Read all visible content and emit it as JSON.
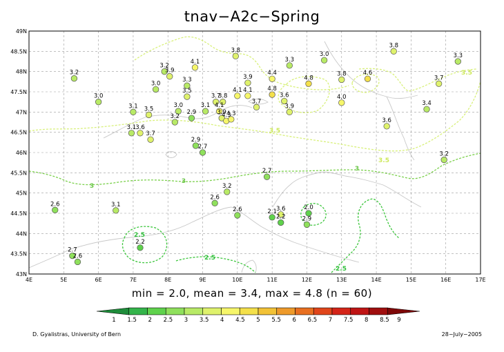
{
  "title": "tnav−A2c−Spring",
  "stats_line": "min = 2.0, mean = 3.4, max = 4.8 (n = 60)",
  "credit": "D. Gyalistras, University of Bern",
  "date": "28−July−2005",
  "map_data": {
    "lon_range": [
      4,
      17
    ],
    "lat_range": [
      43,
      49
    ],
    "lon_ticks": [
      "4E",
      "5E",
      "6E",
      "7E",
      "8E",
      "9E",
      "10E",
      "11E",
      "12E",
      "13E",
      "14E",
      "15E",
      "16E",
      "17E"
    ],
    "lat_ticks": [
      "43N",
      "43.5N",
      "44N",
      "44.5N",
      "45N",
      "45.5N",
      "46N",
      "46.5N",
      "47N",
      "47.5N",
      "48N",
      "48.5N",
      "49N"
    ],
    "grid": true,
    "colorbar": {
      "labels": [
        "1",
        "1.5",
        "2",
        "2.5",
        "3",
        "3.5",
        "4",
        "4.5",
        "5",
        "5.5",
        "6",
        "6.5",
        "7",
        "7.5",
        "8",
        "8.5",
        "9"
      ],
      "colors": [
        "#1e8c3a",
        "#33b44a",
        "#5fd24c",
        "#8fe05c",
        "#b8ea66",
        "#dff26c",
        "#f6f66a",
        "#f4e04a",
        "#f2c236",
        "#ee9a2a",
        "#e86f20",
        "#e0451a",
        "#d42418",
        "#bf1414",
        "#a00e0e",
        "#7e0808"
      ]
    },
    "contours": [
      {
        "label": "3.5",
        "color": "#d4f06a",
        "labels": [
          [
            -2,
            -2
          ]
        ]
      },
      {
        "label": "3",
        "color": "#7ad04a",
        "labels": [
          [
            -2,
            -2
          ]
        ]
      },
      {
        "label": "2.5",
        "color": "#3cc63c",
        "labels": [
          [
            -2,
            -2
          ]
        ]
      }
    ],
    "contour_labels": [
      "3.5",
      "3.5",
      "3.5",
      "3",
      "3",
      "3",
      "2.5",
      "2.5",
      "2.5"
    ],
    "stations": [
      {
        "lon": 5.3,
        "lat": 47.83,
        "value": "3.2"
      },
      {
        "lon": 6.0,
        "lat": 47.25,
        "value": "3.0"
      },
      {
        "lon": 7.65,
        "lat": 47.56,
        "value": "3.0"
      },
      {
        "lon": 7.9,
        "lat": 48.0,
        "value": "3.2"
      },
      {
        "lon": 8.05,
        "lat": 47.88,
        "value": "3.9"
      },
      {
        "lon": 8.78,
        "lat": 48.1,
        "value": "4.1"
      },
      {
        "lon": 9.95,
        "lat": 48.38,
        "value": "3.8"
      },
      {
        "lon": 8.55,
        "lat": 47.65,
        "value": "3.3"
      },
      {
        "lon": 8.55,
        "lat": 47.38,
        "value": "3.5"
      },
      {
        "lon": 7.0,
        "lat": 47.0,
        "value": "3.1"
      },
      {
        "lon": 7.45,
        "lat": 46.93,
        "value": "3.5"
      },
      {
        "lon": 6.95,
        "lat": 46.48,
        "value": "3.1"
      },
      {
        "lon": 7.2,
        "lat": 46.48,
        "value": "3.6"
      },
      {
        "lon": 7.5,
        "lat": 46.32,
        "value": "3.7"
      },
      {
        "lon": 8.3,
        "lat": 47.02,
        "value": "3.0"
      },
      {
        "lon": 8.2,
        "lat": 46.75,
        "value": "3.2"
      },
      {
        "lon": 8.68,
        "lat": 46.85,
        "value": "2.9"
      },
      {
        "lon": 9.08,
        "lat": 47.02,
        "value": "3.1"
      },
      {
        "lon": 9.38,
        "lat": 47.25,
        "value": "3.7"
      },
      {
        "lon": 9.58,
        "lat": 47.25,
        "value": "3.8"
      },
      {
        "lon": 9.48,
        "lat": 47.02,
        "value": "4.1"
      },
      {
        "lon": 9.55,
        "lat": 46.85,
        "value": "3.9"
      },
      {
        "lon": 9.68,
        "lat": 46.78,
        "value": "4.3"
      },
      {
        "lon": 9.82,
        "lat": 46.82,
        "value": "4.3"
      },
      {
        "lon": 8.8,
        "lat": 46.17,
        "value": "2.9"
      },
      {
        "lon": 9.0,
        "lat": 46.0,
        "value": "2.7"
      },
      {
        "lon": 10.3,
        "lat": 47.72,
        "value": "3.9"
      },
      {
        "lon": 10.3,
        "lat": 47.4,
        "value": "4.1"
      },
      {
        "lon": 10.0,
        "lat": 47.4,
        "value": "4.1"
      },
      {
        "lon": 10.55,
        "lat": 47.12,
        "value": "3.7"
      },
      {
        "lon": 11.0,
        "lat": 47.82,
        "value": "4.4"
      },
      {
        "lon": 11.0,
        "lat": 47.43,
        "value": "4.8"
      },
      {
        "lon": 11.35,
        "lat": 47.27,
        "value": "3.6"
      },
      {
        "lon": 11.5,
        "lat": 47.0,
        "value": "3.9"
      },
      {
        "lon": 11.5,
        "lat": 48.15,
        "value": "3.3"
      },
      {
        "lon": 12.05,
        "lat": 47.7,
        "value": "4.8"
      },
      {
        "lon": 12.5,
        "lat": 48.28,
        "value": "3.0"
      },
      {
        "lon": 13.0,
        "lat": 47.8,
        "value": "3.8"
      },
      {
        "lon": 13.0,
        "lat": 47.23,
        "value": "4.0"
      },
      {
        "lon": 13.75,
        "lat": 47.82,
        "value": "4.6"
      },
      {
        "lon": 14.5,
        "lat": 48.5,
        "value": "3.8"
      },
      {
        "lon": 15.8,
        "lat": 47.7,
        "value": "3.7"
      },
      {
        "lon": 16.35,
        "lat": 48.25,
        "value": "3.3"
      },
      {
        "lon": 15.45,
        "lat": 47.07,
        "value": "3.4"
      },
      {
        "lon": 14.3,
        "lat": 46.65,
        "value": "3.6"
      },
      {
        "lon": 15.95,
        "lat": 45.82,
        "value": "3.2"
      },
      {
        "lon": 10.85,
        "lat": 45.4,
        "value": "2.7"
      },
      {
        "lon": 9.7,
        "lat": 45.03,
        "value": "3.2"
      },
      {
        "lon": 9.35,
        "lat": 44.75,
        "value": "2.6"
      },
      {
        "lon": 10.0,
        "lat": 44.45,
        "value": "2.6"
      },
      {
        "lon": 11.0,
        "lat": 44.4,
        "value": "2.1"
      },
      {
        "lon": 11.25,
        "lat": 44.47,
        "value": "3.6"
      },
      {
        "lon": 11.25,
        "lat": 44.27,
        "value": "2.2"
      },
      {
        "lon": 12.05,
        "lat": 44.5,
        "value": "2.0"
      },
      {
        "lon": 12.0,
        "lat": 44.22,
        "value": "2.9"
      },
      {
        "lon": 6.5,
        "lat": 44.57,
        "value": "3.1"
      },
      {
        "lon": 4.75,
        "lat": 44.58,
        "value": "2.6"
      },
      {
        "lon": 7.2,
        "lat": 43.65,
        "value": "2.2"
      },
      {
        "lon": 5.25,
        "lat": 43.45,
        "value": "2.7"
      },
      {
        "lon": 5.4,
        "lat": 43.3,
        "value": "2.6"
      }
    ]
  }
}
